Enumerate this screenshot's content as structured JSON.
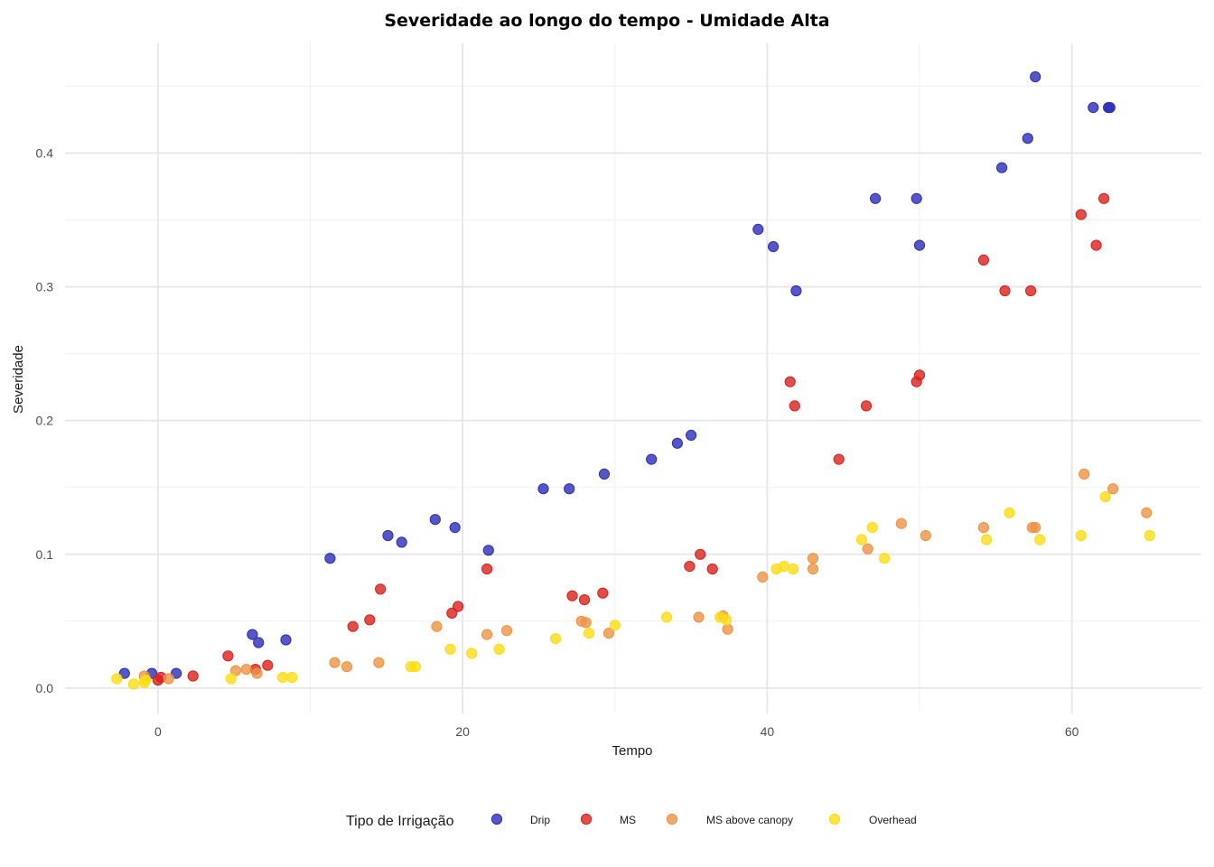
{
  "chart_data": {
    "type": "scatter",
    "title": "Severidade ao longo do tempo - Umidade Alta",
    "xlabel": "Tempo",
    "ylabel": "Severidade",
    "xlim": [
      -6.1,
      68.5
    ],
    "ylim": [
      -0.019,
      0.482
    ],
    "x_ticks": [
      0,
      20,
      40,
      60
    ],
    "y_ticks": [
      0.0,
      0.1,
      0.2,
      0.3,
      0.4
    ],
    "x_tick_labels": [
      "0",
      "20",
      "40",
      "60"
    ],
    "y_tick_labels": [
      "0.0",
      "0.1",
      "0.2",
      "0.3",
      "0.4"
    ],
    "grid": true,
    "legend_position": "bottom",
    "legend_title": "Tipo de Irrigação",
    "series": [
      {
        "name": "Drip",
        "color": "#2b2db8",
        "points": [
          [
            -2.2,
            0.011
          ],
          [
            -0.4,
            0.011
          ],
          [
            1.2,
            0.011
          ],
          [
            6.2,
            0.04
          ],
          [
            6.6,
            0.034
          ],
          [
            8.4,
            0.036
          ],
          [
            11.3,
            0.097
          ],
          [
            15.1,
            0.114
          ],
          [
            16.0,
            0.109
          ],
          [
            18.2,
            0.126
          ],
          [
            19.5,
            0.12
          ],
          [
            21.7,
            0.103
          ],
          [
            25.3,
            0.149
          ],
          [
            27.0,
            0.149
          ],
          [
            29.3,
            0.16
          ],
          [
            32.4,
            0.171
          ],
          [
            34.1,
            0.183
          ],
          [
            35.0,
            0.189
          ],
          [
            39.4,
            0.343
          ],
          [
            40.4,
            0.33
          ],
          [
            41.9,
            0.297
          ],
          [
            47.1,
            0.366
          ],
          [
            49.8,
            0.366
          ],
          [
            50.0,
            0.331
          ],
          [
            55.4,
            0.389
          ],
          [
            57.1,
            0.411
          ],
          [
            57.6,
            0.457
          ],
          [
            61.4,
            0.434
          ],
          [
            62.4,
            0.434
          ],
          [
            62.5,
            0.434
          ]
        ]
      },
      {
        "name": "MS",
        "color": "#d9211b",
        "points": [
          [
            0.0,
            0.006
          ],
          [
            0.2,
            0.008
          ],
          [
            2.3,
            0.009
          ],
          [
            4.6,
            0.024
          ],
          [
            6.4,
            0.014
          ],
          [
            7.2,
            0.017
          ],
          [
            12.8,
            0.046
          ],
          [
            13.9,
            0.051
          ],
          [
            14.6,
            0.074
          ],
          [
            19.3,
            0.056
          ],
          [
            19.7,
            0.061
          ],
          [
            21.6,
            0.089
          ],
          [
            27.2,
            0.069
          ],
          [
            28.0,
            0.066
          ],
          [
            29.2,
            0.071
          ],
          [
            34.9,
            0.091
          ],
          [
            35.6,
            0.1
          ],
          [
            36.4,
            0.089
          ],
          [
            41.5,
            0.229
          ],
          [
            41.8,
            0.211
          ],
          [
            44.7,
            0.171
          ],
          [
            46.5,
            0.211
          ],
          [
            49.8,
            0.229
          ],
          [
            50.0,
            0.234
          ],
          [
            54.2,
            0.32
          ],
          [
            55.6,
            0.297
          ],
          [
            57.3,
            0.297
          ],
          [
            60.6,
            0.354
          ],
          [
            61.6,
            0.331
          ],
          [
            62.1,
            0.366
          ]
        ]
      },
      {
        "name": "MS above canopy",
        "color": "#ec9444",
        "points": [
          [
            -0.9,
            0.009
          ],
          [
            0.7,
            0.007
          ],
          [
            5.1,
            0.013
          ],
          [
            5.8,
            0.014
          ],
          [
            6.5,
            0.011
          ],
          [
            11.6,
            0.019
          ],
          [
            12.4,
            0.016
          ],
          [
            14.5,
            0.019
          ],
          [
            18.3,
            0.046
          ],
          [
            21.6,
            0.04
          ],
          [
            22.9,
            0.043
          ],
          [
            27.8,
            0.05
          ],
          [
            28.1,
            0.049
          ],
          [
            29.6,
            0.041
          ],
          [
            35.5,
            0.053
          ],
          [
            37.1,
            0.054
          ],
          [
            37.4,
            0.044
          ],
          [
            39.7,
            0.083
          ],
          [
            43.0,
            0.097
          ],
          [
            43.0,
            0.089
          ],
          [
            46.6,
            0.104
          ],
          [
            48.8,
            0.123
          ],
          [
            50.4,
            0.114
          ],
          [
            54.2,
            0.12
          ],
          [
            57.4,
            0.12
          ],
          [
            57.6,
            0.12
          ],
          [
            60.8,
            0.16
          ],
          [
            62.7,
            0.149
          ],
          [
            64.9,
            0.131
          ]
        ]
      },
      {
        "name": "Overhead",
        "color": "#fddc15",
        "points": [
          [
            -2.7,
            0.007
          ],
          [
            -1.6,
            0.003
          ],
          [
            -0.8,
            0.006
          ],
          [
            -0.9,
            0.004
          ],
          [
            4.8,
            0.007
          ],
          [
            8.2,
            0.008
          ],
          [
            8.8,
            0.008
          ],
          [
            16.6,
            0.016
          ],
          [
            16.9,
            0.016
          ],
          [
            19.2,
            0.029
          ],
          [
            20.6,
            0.026
          ],
          [
            22.4,
            0.029
          ],
          [
            26.1,
            0.037
          ],
          [
            28.3,
            0.041
          ],
          [
            30.0,
            0.047
          ],
          [
            33.4,
            0.053
          ],
          [
            36.9,
            0.053
          ],
          [
            37.3,
            0.051
          ],
          [
            40.6,
            0.089
          ],
          [
            41.1,
            0.091
          ],
          [
            41.7,
            0.089
          ],
          [
            46.2,
            0.111
          ],
          [
            46.9,
            0.12
          ],
          [
            47.7,
            0.097
          ],
          [
            54.4,
            0.111
          ],
          [
            55.9,
            0.131
          ],
          [
            57.9,
            0.111
          ],
          [
            60.6,
            0.114
          ],
          [
            62.2,
            0.143
          ],
          [
            65.1,
            0.114
          ]
        ]
      }
    ]
  }
}
